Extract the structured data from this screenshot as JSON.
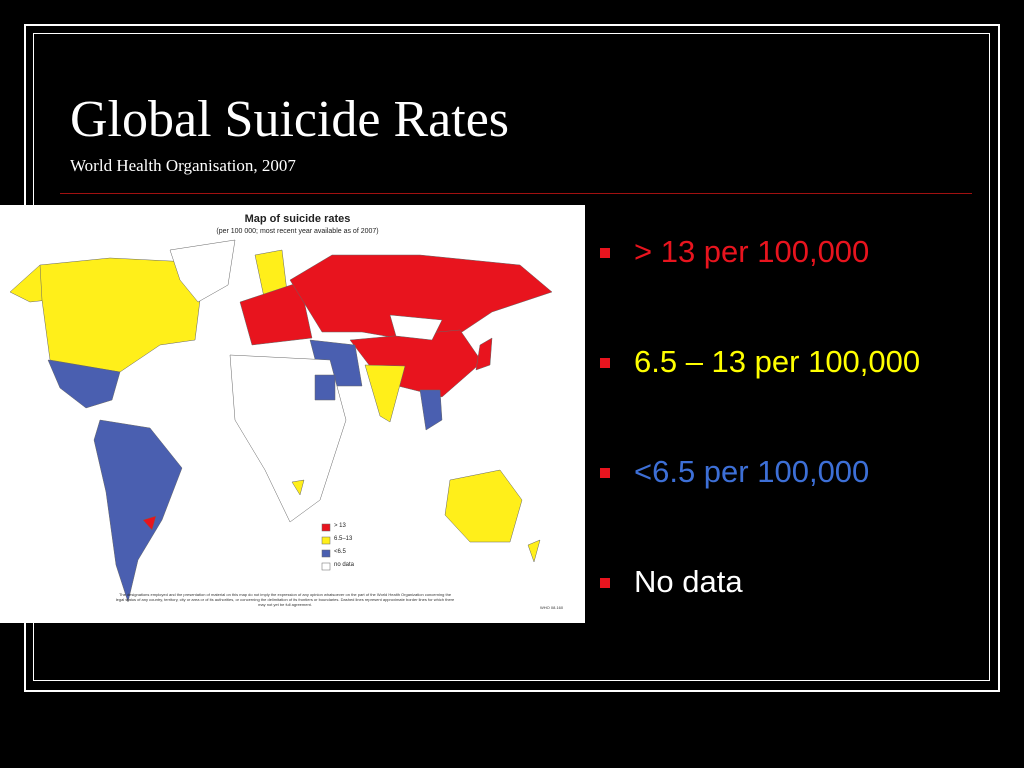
{
  "slide": {
    "title": "Global Suicide Rates",
    "subtitle": "World Health Organisation, 2007",
    "map": {
      "title": "Map of suicide rates",
      "subtitle": "(per 100 000; most recent year available as of 2007)",
      "legend": [
        "> 13",
        "6.5–13",
        "<6.5",
        "no data"
      ],
      "disclaimer": "The designations employed and the presentation of material on this map do not imply the expression of any opinion whatsoever on the part of the World Health Organization concerning the legal status of any country, territory, city or area or of its authorities, or concerning the delimitation of its frontiers or boundaries. Dashed lines represent approximate border lines for which there may not yet be full agreement.",
      "code": "WHO 08.160"
    },
    "bullets": [
      "> 13 per 100,000",
      "6.5 – 13 per 100,000",
      "<6.5 per 100,000",
      "No data"
    ]
  }
}
